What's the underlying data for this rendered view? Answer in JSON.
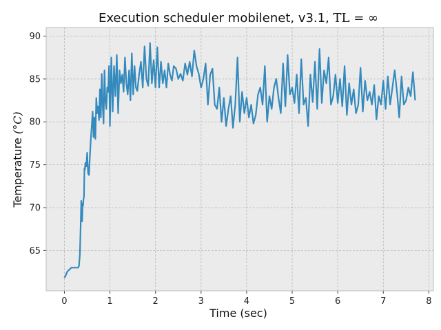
{
  "chart_data": {
    "type": "line",
    "title": "Execution scheduler mobilenet, v3.1, TL = ∞",
    "title_text": "Execution scheduler mobilenet, v3.1, ",
    "title_math": "TL = ∞",
    "xlabel": "Time (sec)",
    "ylabel": "Temperature (°C)",
    "ylabel_text": "Temperature ",
    "ylabel_unit": "(°C)",
    "xlim": [
      -0.4,
      8.1
    ],
    "ylim": [
      60.3,
      91.0
    ],
    "xticks": [
      0,
      1,
      2,
      3,
      4,
      5,
      6,
      7,
      8
    ],
    "yticks": [
      65,
      70,
      75,
      80,
      85,
      90
    ],
    "grid": true,
    "background": "#ebebeb",
    "line_color": "#348abd",
    "series": [
      {
        "x": [
          0.0,
          0.03,
          0.06,
          0.09,
          0.12,
          0.15,
          0.18,
          0.21,
          0.24,
          0.27,
          0.3,
          0.32,
          0.34,
          0.36,
          0.37,
          0.38,
          0.39,
          0.4,
          0.41,
          0.42,
          0.43,
          0.44,
          0.45,
          0.46,
          0.48,
          0.5,
          0.52,
          0.54,
          0.56,
          0.58,
          0.6,
          0.62,
          0.64,
          0.66,
          0.68,
          0.7,
          0.72,
          0.74,
          0.76,
          0.78,
          0.8,
          0.82,
          0.84,
          0.86,
          0.88,
          0.9,
          0.92,
          0.94,
          0.96,
          0.98,
          1.0,
          1.03,
          1.06,
          1.09,
          1.12,
          1.15,
          1.18,
          1.21,
          1.24,
          1.27,
          1.3,
          1.33,
          1.36,
          1.39,
          1.42,
          1.45,
          1.48,
          1.51,
          1.54,
          1.57,
          1.6,
          1.64,
          1.68,
          1.72,
          1.76,
          1.8,
          1.84,
          1.88,
          1.92,
          1.96,
          2.0,
          2.04,
          2.08,
          2.12,
          2.16,
          2.2,
          2.24,
          2.28,
          2.32,
          2.36,
          2.4,
          2.45,
          2.5,
          2.55,
          2.6,
          2.65,
          2.7,
          2.75,
          2.8,
          2.85,
          2.9,
          2.95,
          3.0,
          3.05,
          3.1,
          3.15,
          3.2,
          3.25,
          3.3,
          3.35,
          3.4,
          3.45,
          3.5,
          3.55,
          3.6,
          3.65,
          3.7,
          3.75,
          3.8,
          3.85,
          3.9,
          3.95,
          4.0,
          4.05,
          4.1,
          4.15,
          4.2,
          4.25,
          4.3,
          4.35,
          4.4,
          4.45,
          4.5,
          4.55,
          4.6,
          4.65,
          4.7,
          4.75,
          4.8,
          4.85,
          4.9,
          4.95,
          5.0,
          5.05,
          5.1,
          5.15,
          5.2,
          5.25,
          5.3,
          5.35,
          5.4,
          5.45,
          5.5,
          5.55,
          5.6,
          5.65,
          5.7,
          5.75,
          5.8,
          5.85,
          5.9,
          5.95,
          6.0,
          6.05,
          6.1,
          6.15,
          6.2,
          6.25,
          6.3,
          6.35,
          6.4,
          6.45,
          6.5,
          6.55,
          6.6,
          6.65,
          6.7,
          6.75,
          6.8,
          6.85,
          6.9,
          6.95,
          7.0,
          7.05,
          7.1,
          7.15,
          7.2,
          7.25,
          7.3,
          7.35,
          7.4,
          7.45,
          7.5,
          7.55,
          7.6,
          7.65,
          7.7
        ],
        "y": [
          61.8,
          62.1,
          62.5,
          62.7,
          62.8,
          63.0,
          63.0,
          63.0,
          63.0,
          63.0,
          63.0,
          63.2,
          64.5,
          68.5,
          70.8,
          69.2,
          68.4,
          70.5,
          70.2,
          71.0,
          71.3,
          74.6,
          74.4,
          75.2,
          74.8,
          76.4,
          74.0,
          73.8,
          76.0,
          78.0,
          79.5,
          81.2,
          78.2,
          80.5,
          78.0,
          82.8,
          81.0,
          81.8,
          80.2,
          83.8,
          80.5,
          85.6,
          82.0,
          79.8,
          86.0,
          82.5,
          81.5,
          84.0,
          83.5,
          86.5,
          79.5,
          87.5,
          81.2,
          86.5,
          83.0,
          87.8,
          81.0,
          86.0,
          84.5,
          85.5,
          83.5,
          87.5,
          84.5,
          83.2,
          86.0,
          82.5,
          88.0,
          83.2,
          86.5,
          84.0,
          83.6,
          85.5,
          87.0,
          84.0,
          88.8,
          85.0,
          84.2,
          89.2,
          84.5,
          87.2,
          84.0,
          88.7,
          84.0,
          87.0,
          84.5,
          86.0,
          84.0,
          86.8,
          85.5,
          84.8,
          86.5,
          86.2,
          85.0,
          85.6,
          84.8,
          86.8,
          85.5,
          87.0,
          85.3,
          88.3,
          86.5,
          85.6,
          84.0,
          85.0,
          86.8,
          82.0,
          85.5,
          86.2,
          82.0,
          81.5,
          84.0,
          80.0,
          82.8,
          79.5,
          81.5,
          83.0,
          79.3,
          82.0,
          87.5,
          80.0,
          83.5,
          81.0,
          82.8,
          80.5,
          82.0,
          79.8,
          80.8,
          83.2,
          84.0,
          82.0,
          86.5,
          80.0,
          83.0,
          81.5,
          84.0,
          85.0,
          82.8,
          81.0,
          86.8,
          81.8,
          87.8,
          83.2,
          84.0,
          82.2,
          85.5,
          81.0,
          87.3,
          82.0,
          82.8,
          79.5,
          85.5,
          82.3,
          87.0,
          81.5,
          88.5,
          82.2,
          86.0,
          84.5,
          87.5,
          82.0,
          83.0,
          85.5,
          82.2,
          85.0,
          81.8,
          86.5,
          80.8,
          84.5,
          82.0,
          83.8,
          81.0,
          82.0,
          86.3,
          81.2,
          84.8,
          82.5,
          83.5,
          82.0,
          84.3,
          80.3,
          83.0,
          82.0,
          84.8,
          81.5,
          85.3,
          82.0,
          84.0,
          86.0,
          83.5,
          80.5,
          85.3,
          82.0,
          82.5,
          84.0,
          83.0,
          85.8,
          82.5
        ]
      }
    ]
  }
}
